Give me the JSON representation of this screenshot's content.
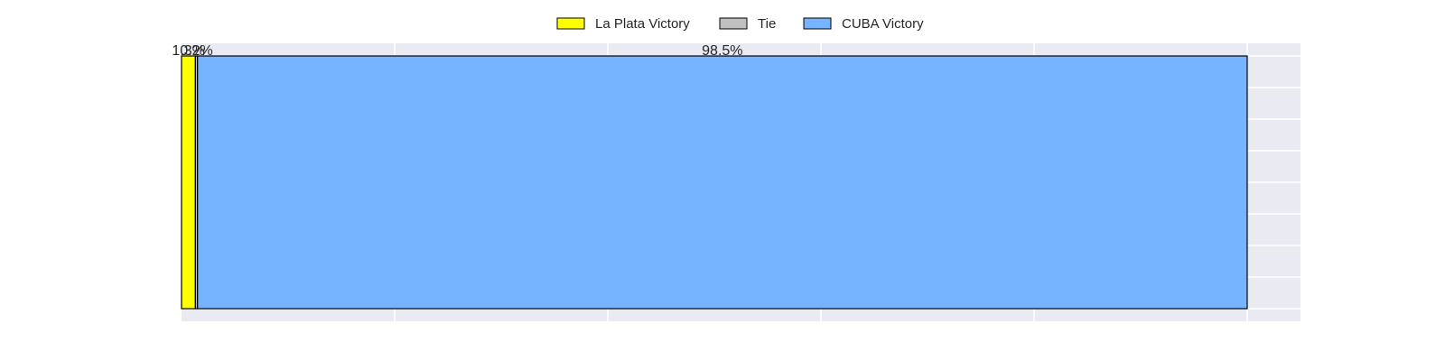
{
  "chart_data": {
    "type": "bar",
    "orientation": "horizontal-stacked-100",
    "categories": [
      ""
    ],
    "series": [
      {
        "name": "La Plata Victory",
        "values": [
          1.3
        ],
        "label": "1.3%",
        "color": "#ffff00"
      },
      {
        "name": "Tie",
        "values": [
          0.2
        ],
        "label": "0.2%",
        "color": "#c0c0c0"
      },
      {
        "name": "CUBA Victory",
        "values": [
          98.5
        ],
        "label": "98.5%",
        "color": "#76b4ff"
      }
    ],
    "xlim": [
      0,
      105
    ],
    "grid": true,
    "legend_position": "top-center",
    "colors": {
      "plot_background": "#eaeaf2",
      "grid": "#ffffff",
      "edge": "#000000"
    }
  }
}
